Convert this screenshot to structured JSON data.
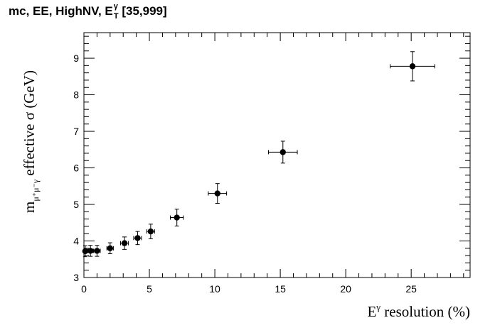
{
  "title": {
    "text": "mc, EE, HighNV, E",
    "sup": "γ",
    "sub": "T",
    "range": "[35,999]"
  },
  "chart_data": {
    "type": "scatter",
    "title": "mc, EE, HighNV, E_T^γ [35,999]",
    "xlabel": {
      "main": "E",
      "sup": "γ",
      "rest": " resolution (%)"
    },
    "ylabel": {
      "main": "m",
      "sub": "μ⁺μ⁻γ",
      "rest": " effective σ (GeV)"
    },
    "xlim": [
      0,
      29.5
    ],
    "ylim": [
      3,
      9.7
    ],
    "x_ticks": [
      0,
      5,
      10,
      15,
      20,
      25
    ],
    "y_ticks": [
      3,
      4,
      5,
      6,
      7,
      8,
      9
    ],
    "grid": false,
    "points": [
      {
        "x": 0.1,
        "y": 3.72,
        "xerr": 0.1,
        "yerr": 0.15
      },
      {
        "x": 0.5,
        "y": 3.73,
        "xerr": 0.2,
        "yerr": 0.15
      },
      {
        "x": 1.0,
        "y": 3.73,
        "xerr": 0.25,
        "yerr": 0.15
      },
      {
        "x": 2.0,
        "y": 3.8,
        "xerr": 0.25,
        "yerr": 0.15
      },
      {
        "x": 3.1,
        "y": 3.94,
        "xerr": 0.3,
        "yerr": 0.17
      },
      {
        "x": 4.1,
        "y": 4.08,
        "xerr": 0.3,
        "yerr": 0.18
      },
      {
        "x": 5.1,
        "y": 4.26,
        "xerr": 0.3,
        "yerr": 0.2
      },
      {
        "x": 7.1,
        "y": 4.64,
        "xerr": 0.5,
        "yerr": 0.23
      },
      {
        "x": 10.2,
        "y": 5.3,
        "xerr": 0.7,
        "yerr": 0.27
      },
      {
        "x": 15.2,
        "y": 6.43,
        "xerr": 1.1,
        "yerr": 0.3
      },
      {
        "x": 25.1,
        "y": 8.78,
        "xerr": 1.7,
        "yerr": 0.4
      }
    ]
  }
}
